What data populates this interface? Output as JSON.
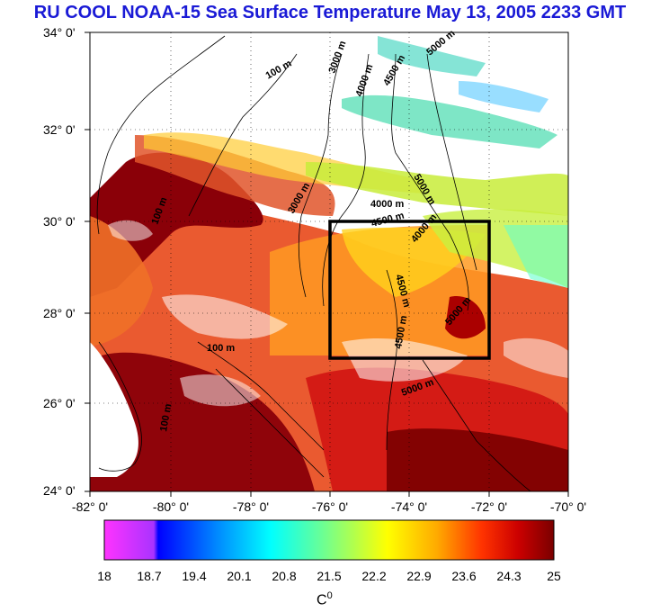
{
  "title": "RU COOL  NOAA-15 Sea Surface Temperature May 13, 2005 2233 GMT",
  "map": {
    "lat_ticks": [
      "34° 0'",
      "32° 0'",
      "30° 0'",
      "28° 0'",
      "26° 0'",
      "24° 0'"
    ],
    "lon_ticks": [
      "-82° 0'",
      "-80° 0'",
      "-78° 0'",
      "-76° 0'",
      "-74° 0'",
      "-72° 0'",
      "-70° 0'"
    ],
    "lat_range": [
      24,
      34
    ],
    "lon_range": [
      -82,
      -70
    ],
    "study_box": {
      "lon": [
        -76,
        -72
      ],
      "lat": [
        27,
        30
      ]
    },
    "contour_labels": [
      "100 m",
      "3000 m",
      "4000 m",
      "4500 m",
      "5000 m",
      "3000 m",
      "4000 m",
      "4500 m",
      "4000 m",
      "5000 m",
      "4500 m",
      "4500 m",
      "5000 m",
      "5000 m",
      "100 m",
      "100 m",
      "100 m"
    ]
  },
  "colorbar": {
    "labels": [
      "18",
      "18.7",
      "19.4",
      "20.1",
      "20.8",
      "21.5",
      "22.2",
      "22.9",
      "23.6",
      "24.3",
      "25"
    ],
    "unit": "C",
    "unit_sup": "0",
    "colors": [
      "#ff33ff",
      "#0000ff",
      "#0099ff",
      "#00ffff",
      "#66ff99",
      "#ccff33",
      "#ffff00",
      "#ffaa00",
      "#ff5500",
      "#dd0000",
      "#880000"
    ]
  }
}
